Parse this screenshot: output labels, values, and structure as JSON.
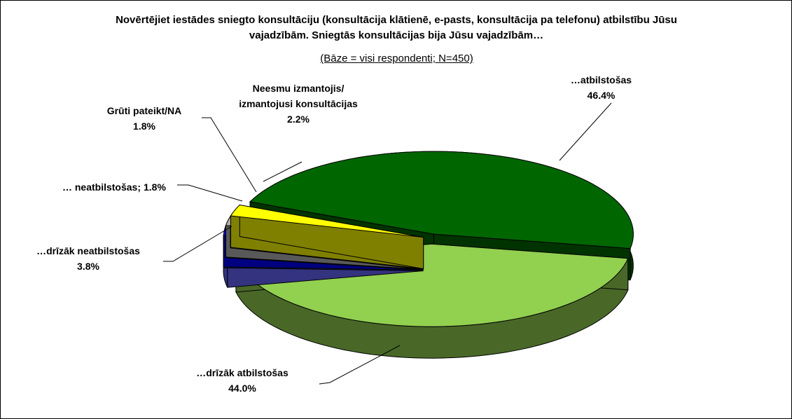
{
  "chart_data": {
    "type": "pie3d",
    "title": "Novērtējiet iestādes sniegto konsultāciju (konsultācija klātienē, e-pasts, konsultācija pa telefonu) atbilstību Jūsu vajadzībām. Sniegtās konsultācijas bija Jūsu vajadzībām…",
    "subtitle": "(Bāze = visi respondenti; N=450)",
    "categories": [
      "…atbilstošas",
      "…drīzāk atbilstošas",
      "…drīzāk neatbilstošas",
      "… neatbilstošas;",
      "Grūti pateikt/NA",
      "Neesmu izmantojis/ izmantojusi konsultācijas"
    ],
    "values": [
      46.4,
      44.0,
      3.8,
      1.8,
      1.8,
      2.2
    ],
    "value_labels": [
      "46.4%",
      "44.0%",
      "3.8%",
      "1.8%",
      "1.8%",
      "2.2%"
    ],
    "colors": [
      "#006600",
      "#92d050",
      "#6666ff",
      "#0000ff",
      "#b2b2b2",
      "#ffff00"
    ]
  }
}
